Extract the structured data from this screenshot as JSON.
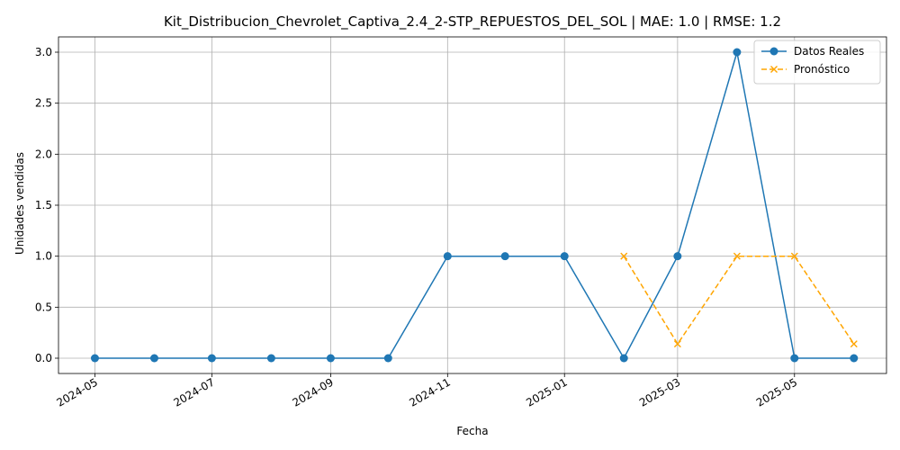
{
  "chart_data": {
    "type": "line",
    "title": "Kit_Distribucion_Chevrolet_Captiva_2.4_2-STP_REPUESTOS_DEL_SOL | MAE: 1.0 | RMSE: 1.2",
    "xlabel": "Fecha",
    "ylabel": "Unidades vendidas",
    "ylim": [
      -0.15,
      3.15
    ],
    "xlim": [
      "2024-04-12",
      "2025-06-18"
    ],
    "grid": true,
    "legend_position": "top-right",
    "x_ticks": [
      "2024-05",
      "2024-07",
      "2024-09",
      "2024-11",
      "2025-01",
      "2025-03",
      "2025-05"
    ],
    "y_ticks": [
      "0.0",
      "0.5",
      "1.0",
      "1.5",
      "2.0",
      "2.5",
      "3.0"
    ],
    "y_tick_values": [
      0,
      0.5,
      1.0,
      1.5,
      2.0,
      2.5,
      3.0
    ],
    "series": [
      {
        "name": "Datos Reales",
        "color": "#1f77b4",
        "marker": "circle",
        "line_style": "solid",
        "x": [
          "2024-05-01",
          "2024-06-01",
          "2024-07-01",
          "2024-08-01",
          "2024-09-01",
          "2024-10-01",
          "2024-11-01",
          "2024-12-01",
          "2025-01-01",
          "2025-02-01",
          "2025-03-01",
          "2025-04-01",
          "2025-05-01",
          "2025-06-01"
        ],
        "values": [
          0,
          0,
          0,
          0,
          0,
          0,
          1,
          1,
          1,
          0,
          1,
          3,
          0,
          0
        ]
      },
      {
        "name": "Pronóstico",
        "color": "#ffa500",
        "marker": "x",
        "line_style": "dashed",
        "x": [
          "2025-02-01",
          "2025-03-01",
          "2025-04-01",
          "2025-05-01",
          "2025-06-01"
        ],
        "values": [
          1.0,
          0.14,
          1.0,
          1.0,
          0.14
        ]
      }
    ]
  }
}
